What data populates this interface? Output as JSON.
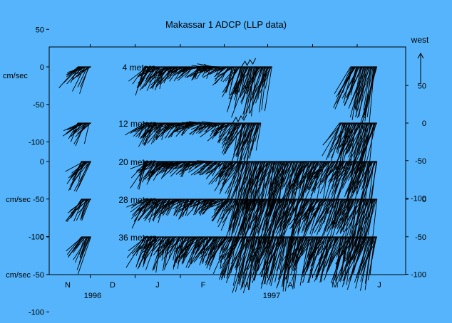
{
  "chart_data": {
    "type": "stick-vector",
    "title": "Makassar 1 ADCP (LLP data)",
    "ylabel": "cm/sec",
    "direction_label": "west",
    "ylim": [
      -100,
      50
    ],
    "months": [
      "N",
      "D",
      "J",
      "F",
      "M",
      "A",
      "M",
      "J"
    ],
    "years": [
      "1996",
      "1997"
    ],
    "left_ticks": [
      {
        "panel": 0,
        "labels": [
          "50",
          "0",
          "-50",
          "-100"
        ],
        "values": [
          50,
          0,
          -50,
          -100
        ]
      },
      {
        "panel": 2,
        "labels": [
          "0",
          "cm/sec -50",
          "-100"
        ],
        "values": [
          0,
          -50,
          -100
        ]
      },
      {
        "panel": 4,
        "labels": [
          "0",
          "cm/sec -50",
          "-100"
        ],
        "values": [
          0,
          -50,
          -100
        ]
      }
    ],
    "right_ticks": [
      {
        "panel": 1,
        "labels": [
          "50",
          "0",
          "-50",
          "-100"
        ],
        "values": [
          50,
          0,
          -50,
          -100
        ]
      },
      {
        "panel": 3,
        "labels": [
          "0",
          "-50",
          "-100"
        ],
        "values": [
          0,
          -50,
          -100
        ]
      }
    ],
    "series": [
      {
        "name": "4 meters",
        "segments": [
          [
            0.22,
            0.52
          ],
          [
            1.7,
            4.6
          ],
          [
            6.35,
            6.95
          ]
        ],
        "mean": [
          [
            0.2,
            -15
          ],
          [
            0.5,
            -25
          ],
          [
            1.7,
            -25
          ],
          [
            2.2,
            -18
          ],
          [
            2.8,
            -10
          ],
          [
            3.3,
            -5
          ],
          [
            3.7,
            -20
          ],
          [
            4.0,
            -55
          ],
          [
            4.3,
            -45
          ],
          [
            4.6,
            -40
          ],
          [
            6.35,
            -45
          ],
          [
            6.6,
            -55
          ],
          [
            6.95,
            -65
          ]
        ],
        "amp": [
          [
            0.2,
            12
          ],
          [
            0.5,
            18
          ],
          [
            1.7,
            15
          ],
          [
            2.6,
            10
          ],
          [
            3.3,
            10
          ],
          [
            3.7,
            15
          ],
          [
            4.0,
            22
          ],
          [
            4.6,
            20
          ],
          [
            6.35,
            18
          ],
          [
            6.95,
            20
          ]
        ]
      },
      {
        "name": "12 meters",
        "segments": [
          [
            0.22,
            0.52
          ],
          [
            1.7,
            4.35
          ],
          [
            6.1,
            6.95
          ]
        ],
        "mean": [
          [
            0.2,
            -15
          ],
          [
            0.5,
            -22
          ],
          [
            1.7,
            -22
          ],
          [
            2.2,
            -15
          ],
          [
            2.8,
            -8
          ],
          [
            3.3,
            -5
          ],
          [
            3.7,
            -20
          ],
          [
            4.0,
            -45
          ],
          [
            4.35,
            -40
          ],
          [
            6.1,
            -40
          ],
          [
            6.6,
            -50
          ],
          [
            6.95,
            -60
          ]
        ],
        "amp": [
          [
            0.2,
            12
          ],
          [
            0.5,
            16
          ],
          [
            1.7,
            14
          ],
          [
            2.6,
            10
          ],
          [
            3.3,
            9
          ],
          [
            3.7,
            14
          ],
          [
            4.0,
            20
          ],
          [
            4.35,
            18
          ],
          [
            6.1,
            18
          ],
          [
            6.95,
            20
          ]
        ]
      },
      {
        "name": "20 meters",
        "segments": [
          [
            0.3,
            0.52
          ],
          [
            1.7,
            6.95
          ]
        ],
        "mean": [
          [
            0.3,
            -25
          ],
          [
            0.52,
            -30
          ],
          [
            1.7,
            -25
          ],
          [
            2.2,
            -15
          ],
          [
            2.8,
            -10
          ],
          [
            3.3,
            -8
          ],
          [
            3.7,
            -25
          ],
          [
            4.0,
            -55
          ],
          [
            4.5,
            -50
          ],
          [
            5.0,
            -55
          ],
          [
            5.4,
            -45
          ],
          [
            5.8,
            -35
          ],
          [
            6.2,
            -35
          ],
          [
            6.6,
            -45
          ],
          [
            6.95,
            -55
          ]
        ],
        "amp": [
          [
            0.3,
            14
          ],
          [
            1.7,
            15
          ],
          [
            2.6,
            10
          ],
          [
            3.3,
            10
          ],
          [
            3.7,
            16
          ],
          [
            4.2,
            22
          ],
          [
            5.0,
            22
          ],
          [
            6.0,
            18
          ],
          [
            6.95,
            20
          ]
        ]
      },
      {
        "name": "28 meters",
        "segments": [
          [
            0.3,
            0.52
          ],
          [
            1.7,
            6.95
          ]
        ],
        "mean": [
          [
            0.3,
            -22
          ],
          [
            0.52,
            -28
          ],
          [
            1.7,
            -25
          ],
          [
            2.2,
            -18
          ],
          [
            2.8,
            -15
          ],
          [
            3.3,
            -10
          ],
          [
            3.7,
            -25
          ],
          [
            4.0,
            -50
          ],
          [
            4.5,
            -48
          ],
          [
            5.0,
            -52
          ],
          [
            5.4,
            -45
          ],
          [
            5.8,
            -35
          ],
          [
            6.2,
            -38
          ],
          [
            6.6,
            -45
          ],
          [
            6.95,
            -52
          ]
        ],
        "amp": [
          [
            0.3,
            14
          ],
          [
            1.7,
            15
          ],
          [
            2.6,
            12
          ],
          [
            3.3,
            10
          ],
          [
            3.7,
            16
          ],
          [
            4.2,
            20
          ],
          [
            5.0,
            20
          ],
          [
            6.0,
            18
          ],
          [
            6.95,
            20
          ]
        ]
      },
      {
        "name": "36 meters",
        "segments": [
          [
            0.3,
            0.52
          ],
          [
            1.7,
            6.95
          ]
        ],
        "mean": [
          [
            0.3,
            -28
          ],
          [
            0.52,
            -35
          ],
          [
            1.7,
            -35
          ],
          [
            2.2,
            -30
          ],
          [
            2.8,
            -30
          ],
          [
            3.3,
            -25
          ],
          [
            3.7,
            -35
          ],
          [
            4.0,
            -55
          ],
          [
            4.5,
            -52
          ],
          [
            5.0,
            -55
          ],
          [
            5.4,
            -45
          ],
          [
            5.8,
            -40
          ],
          [
            6.2,
            -45
          ],
          [
            6.6,
            -50
          ],
          [
            6.95,
            -55
          ]
        ],
        "amp": [
          [
            0.3,
            16
          ],
          [
            1.7,
            18
          ],
          [
            2.6,
            16
          ],
          [
            3.3,
            14
          ],
          [
            3.7,
            18
          ],
          [
            4.2,
            22
          ],
          [
            5.0,
            22
          ],
          [
            6.0,
            20
          ],
          [
            6.95,
            20
          ]
        ]
      }
    ]
  }
}
